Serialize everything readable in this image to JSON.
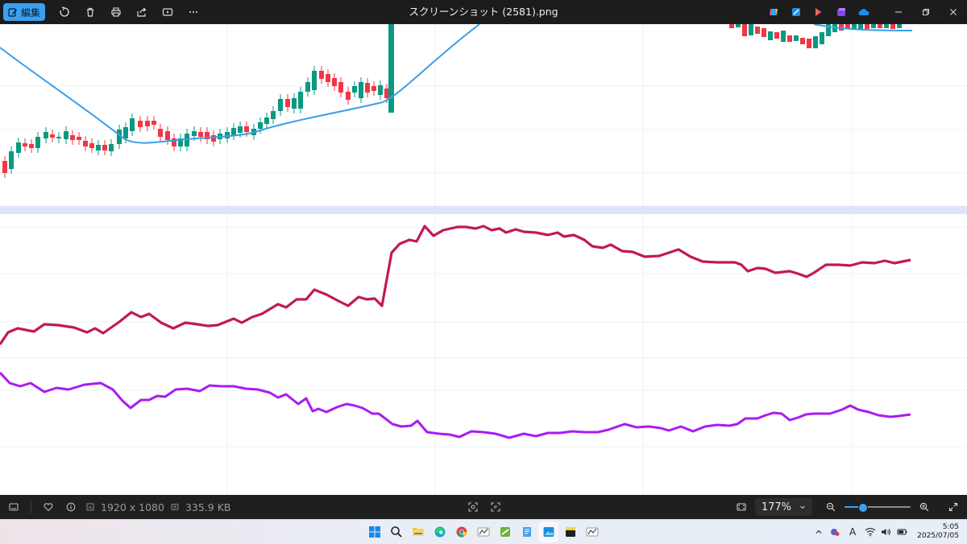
{
  "titlebar": {
    "edit_label": "編集",
    "filename": "スクリーンショット (2581).png",
    "toolbar_icons": [
      "rotate-icon",
      "delete-icon",
      "print-icon",
      "share-icon",
      "slideshow-icon",
      "more-icon"
    ],
    "app_icons": [
      "copilot-icon",
      "photos-editor-icon",
      "clipchamp-icon",
      "designer-icon",
      "onedrive-icon"
    ],
    "window_controls": [
      "minimize-icon",
      "restore-icon",
      "close-icon"
    ]
  },
  "infobar": {
    "dimensions": "1920 x 1080",
    "filesize": "335.9 KB",
    "zoom": "177%",
    "zoom_slider_level": 0.27
  },
  "colors": {
    "candle_up": "#0a9981",
    "candle_down": "#f23645",
    "ma_line": "#3a9ee6",
    "indicator_1": "#c2185b",
    "indicator_2": "#aa1bf2",
    "pane_separator": "#dde4fb",
    "grid": "#eef0f3"
  },
  "taskbar": {
    "apps": [
      "start-icon",
      "search-icon",
      "file-explorer-icon",
      "edge-icon",
      "chrome-icon",
      "app-icon-1",
      "app-icon-2",
      "notepad-icon",
      "photos-icon",
      "sticky-notes-icon",
      "app-icon-3"
    ],
    "tray_icons": [
      "chevron-up-icon",
      "teams-icon",
      "ime-icon",
      "wifi-icon",
      "volume-icon",
      "battery-icon"
    ],
    "ime_label": "A",
    "time": "5:05",
    "date": "2025/07/05"
  }
}
